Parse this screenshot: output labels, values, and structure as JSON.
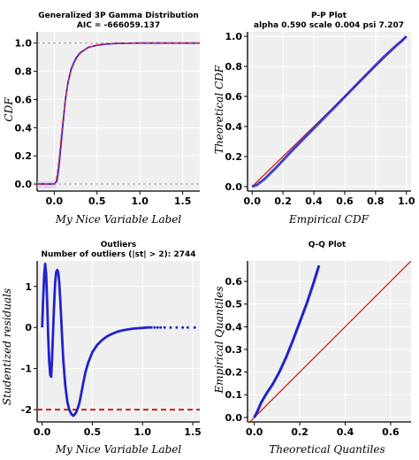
{
  "chart_data": [
    {
      "type": "line",
      "title": "Generalized 3P Gamma Distribution",
      "subtitle": "AIC = -666059.137",
      "xlabel": "My Nice Variable Label",
      "ylabel": "CDF",
      "xlim": [
        -0.2,
        1.7
      ],
      "ylim": [
        -0.05,
        1.08
      ],
      "xticks": [
        "0.0",
        "0.5",
        "1.0",
        "1.5"
      ],
      "xtick_values": [
        0.0,
        0.5,
        1.0,
        1.5
      ],
      "yticks": [
        "0.0",
        "0.2",
        "0.4",
        "0.6",
        "0.8",
        "1.0"
      ],
      "ytick_values": [
        0.0,
        0.2,
        0.4,
        0.6,
        0.8,
        1.0
      ],
      "reference_lines_y": [
        0.0,
        1.0
      ],
      "grid": true,
      "colors": {
        "empirical": "#2222dd",
        "fitted": "#ee3333",
        "band": "#c8c8ee"
      },
      "series": [
        {
          "role": "empirical",
          "x": [
            -0.2,
            0.0,
            0.03,
            0.05,
            0.07,
            0.1,
            0.13,
            0.16,
            0.2,
            0.25,
            0.3,
            0.4,
            0.5,
            0.6,
            0.7,
            0.85,
            1.0,
            1.7
          ],
          "y": [
            0.0,
            0.0,
            0.02,
            0.1,
            0.22,
            0.42,
            0.6,
            0.72,
            0.82,
            0.89,
            0.93,
            0.97,
            0.985,
            0.993,
            0.997,
            0.999,
            1.0,
            1.0
          ]
        },
        {
          "role": "fitted",
          "x": [
            -0.2,
            0.0,
            0.02,
            0.04,
            0.06,
            0.08,
            0.1,
            0.13,
            0.16,
            0.2,
            0.25,
            0.3,
            0.4,
            0.5,
            0.6,
            0.8,
            1.0,
            1.7
          ],
          "y": [
            0.0,
            0.0,
            0.02,
            0.09,
            0.2,
            0.33,
            0.45,
            0.6,
            0.71,
            0.81,
            0.88,
            0.925,
            0.97,
            0.988,
            0.995,
            0.999,
            1.0,
            1.0
          ]
        }
      ]
    },
    {
      "type": "line",
      "title": "P-P Plot",
      "subtitle": "alpha 0.590 scale 0.004 psi 7.207",
      "xlabel": "Empirical CDF",
      "ylabel": "Theoretical CDF",
      "xlim": [
        -0.03,
        1.03
      ],
      "ylim": [
        -0.03,
        1.03
      ],
      "xticks": [
        "0.0",
        "0.2",
        "0.4",
        "0.6",
        "0.8",
        "1.0"
      ],
      "xtick_values": [
        0.0,
        0.2,
        0.4,
        0.6,
        0.8,
        1.0
      ],
      "yticks": [
        "0.0",
        "0.2",
        "0.4",
        "0.6",
        "0.8",
        "1.0"
      ],
      "ytick_values": [
        0.0,
        0.2,
        0.4,
        0.6,
        0.8,
        1.0
      ],
      "grid": true,
      "colors": {
        "points": "#2222cc",
        "reference": "#cc1111"
      },
      "series": [
        {
          "role": "points",
          "x": [
            0.0,
            0.03,
            0.08,
            0.15,
            0.25,
            0.35,
            0.45,
            0.55,
            0.65,
            0.75,
            0.85,
            0.93,
            0.97,
            1.0
          ],
          "y": [
            0.0,
            0.01,
            0.05,
            0.12,
            0.23,
            0.335,
            0.44,
            0.545,
            0.65,
            0.755,
            0.86,
            0.935,
            0.97,
            1.0
          ]
        },
        {
          "role": "reference",
          "x": [
            0.0,
            1.0
          ],
          "y": [
            0.0,
            1.0
          ]
        }
      ]
    },
    {
      "type": "scatter",
      "title": "Outliers",
      "subtitle": "Number of outliers (|st| > 2):  2744",
      "xlabel": "My Nice Variable Label",
      "ylabel": "Studentized residuals",
      "xlim": [
        -0.05,
        1.57
      ],
      "ylim": [
        -2.3,
        1.62
      ],
      "xticks": [
        "0.0",
        "0.5",
        "1.0",
        "1.5"
      ],
      "xtick_values": [
        0.0,
        0.5,
        1.0,
        1.5
      ],
      "yticks": [
        "-2",
        "-1",
        "0",
        "1"
      ],
      "ytick_values": [
        -2,
        -1,
        0,
        1
      ],
      "threshold_y": -2,
      "grid": true,
      "colors": {
        "points": "#2222cc",
        "threshold": "#dd1111"
      },
      "series": [
        {
          "role": "residuals",
          "x": [
            0.0,
            0.01,
            0.02,
            0.03,
            0.04,
            0.05,
            0.06,
            0.07,
            0.08,
            0.09,
            0.1,
            0.11,
            0.12,
            0.13,
            0.14,
            0.15,
            0.16,
            0.17,
            0.18,
            0.19,
            0.2,
            0.21,
            0.22,
            0.23,
            0.25,
            0.27,
            0.29,
            0.31,
            0.33,
            0.35,
            0.37,
            0.39,
            0.41,
            0.43,
            0.46,
            0.5,
            0.55,
            0.6,
            0.65,
            0.7,
            0.75,
            0.8,
            0.85,
            0.9,
            0.95,
            1.0,
            1.05,
            1.1
          ],
          "y": [
            0.0,
            0.7,
            1.3,
            1.55,
            1.3,
            0.6,
            -0.2,
            -0.8,
            -1.15,
            -1.2,
            -0.7,
            0.0,
            0.6,
            1.1,
            1.35,
            1.4,
            1.35,
            1.1,
            0.7,
            0.2,
            -0.3,
            -0.75,
            -1.1,
            -1.4,
            -1.8,
            -2.0,
            -2.1,
            -2.15,
            -2.1,
            -2.0,
            -1.85,
            -1.6,
            -1.35,
            -1.1,
            -0.85,
            -0.6,
            -0.42,
            -0.3,
            -0.21,
            -0.15,
            -0.1,
            -0.07,
            -0.05,
            -0.03,
            -0.02,
            -0.01,
            0.0,
            0.0
          ]
        },
        {
          "role": "sparse",
          "x": [
            1.12,
            1.15,
            1.18,
            1.22,
            1.28,
            1.34,
            1.4,
            1.45,
            1.52
          ],
          "y": [
            0.0,
            0.0,
            0.0,
            0.0,
            0.0,
            0.0,
            0.0,
            0.0,
            0.0
          ]
        }
      ]
    },
    {
      "type": "line",
      "title": "Q-Q Plot",
      "xlabel": "Theoretical Quantiles",
      "ylabel": "Empirical Quantiles",
      "xlim": [
        -0.03,
        0.69
      ],
      "ylim": [
        -0.02,
        0.69
      ],
      "xticks": [
        "0.0",
        "0.2",
        "0.4",
        "0.6"
      ],
      "xtick_values": [
        0.0,
        0.2,
        0.4,
        0.6
      ],
      "yticks": [
        "0.0",
        "0.1",
        "0.2",
        "0.3",
        "0.4",
        "0.5",
        "0.6"
      ],
      "ytick_values": [
        0.0,
        0.1,
        0.2,
        0.3,
        0.4,
        0.5,
        0.6
      ],
      "grid": true,
      "colors": {
        "points": "#2222cc",
        "reference": "#cc1111"
      },
      "series": [
        {
          "role": "points",
          "x": [
            0.0,
            0.005,
            0.015,
            0.03,
            0.05,
            0.08,
            0.11,
            0.14,
            0.17,
            0.2,
            0.23,
            0.26,
            0.285
          ],
          "y": [
            0.0,
            0.01,
            0.03,
            0.065,
            0.1,
            0.145,
            0.2,
            0.265,
            0.34,
            0.42,
            0.5,
            0.59,
            0.67
          ]
        },
        {
          "role": "reference",
          "x": [
            -0.03,
            0.69
          ],
          "y": [
            -0.03,
            0.69
          ]
        }
      ]
    }
  ]
}
